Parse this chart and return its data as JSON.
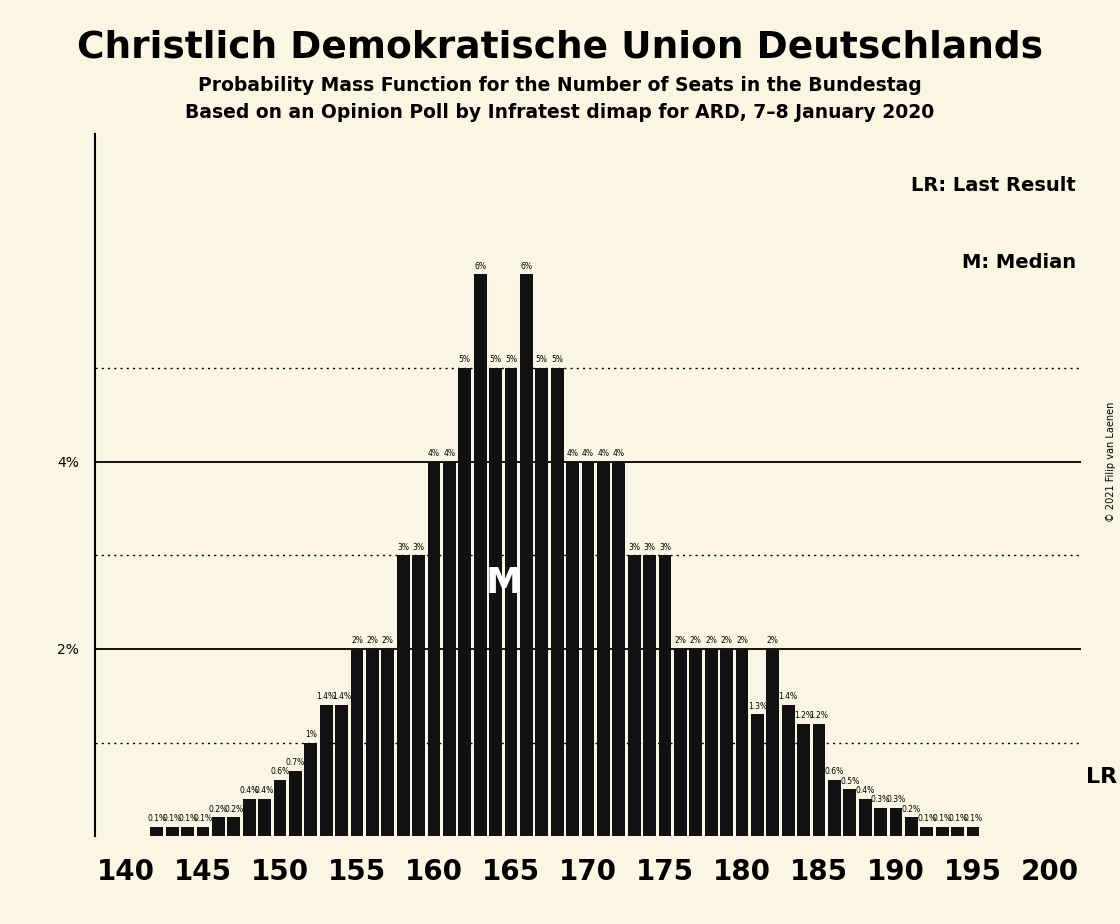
{
  "title": "Christlich Demokratische Union Deutschlands",
  "subtitle1": "Probability Mass Function for the Number of Seats in the Bundestag",
  "subtitle2": "Based on an Opinion Poll by Infratest dimap for ARD, 7–8 January 2020",
  "copyright": "© 2021 Filip van Laenen",
  "lr_label": "LR: Last Result",
  "m_label": "M: Median",
  "lr_text": "LR",
  "m_text": "M",
  "background_color": "#FAF6E3",
  "bar_color": "#111111",
  "xlabel_vals": [
    140,
    145,
    150,
    155,
    160,
    165,
    170,
    175,
    180,
    185,
    190,
    195,
    200
  ],
  "seats": [
    140,
    141,
    142,
    143,
    144,
    145,
    146,
    147,
    148,
    149,
    150,
    151,
    152,
    153,
    154,
    155,
    156,
    157,
    158,
    159,
    160,
    161,
    162,
    163,
    164,
    165,
    166,
    167,
    168,
    169,
    170,
    171,
    172,
    173,
    174,
    175,
    176,
    177,
    178,
    179,
    180,
    181,
    182,
    183,
    184,
    185,
    186,
    187,
    188,
    189,
    190,
    191,
    192,
    193,
    194,
    195,
    196,
    197,
    198,
    199,
    200
  ],
  "probs": [
    0.0,
    0.0,
    0.1,
    0.1,
    0.1,
    0.1,
    0.2,
    0.2,
    0.4,
    0.4,
    0.6,
    0.7,
    1.0,
    1.4,
    1.4,
    2.0,
    2.0,
    2.0,
    3.0,
    3.0,
    4.0,
    4.0,
    5.0,
    6.0,
    5.0,
    5.0,
    6.0,
    5.0,
    5.0,
    4.0,
    4.0,
    4.0,
    4.0,
    3.0,
    3.0,
    3.0,
    2.0,
    2.0,
    2.0,
    2.0,
    2.0,
    1.3,
    2.0,
    1.4,
    1.2,
    1.2,
    0.6,
    0.5,
    0.4,
    0.3,
    0.3,
    0.2,
    0.1,
    0.1,
    0.1,
    0.1,
    0.0,
    0.0,
    0.0,
    0.0,
    0.0
  ],
  "median_seat": 164,
  "ylim_max": 7.0,
  "solid_lines": [
    2,
    4
  ],
  "dotted_lines": [
    1,
    3,
    5
  ]
}
